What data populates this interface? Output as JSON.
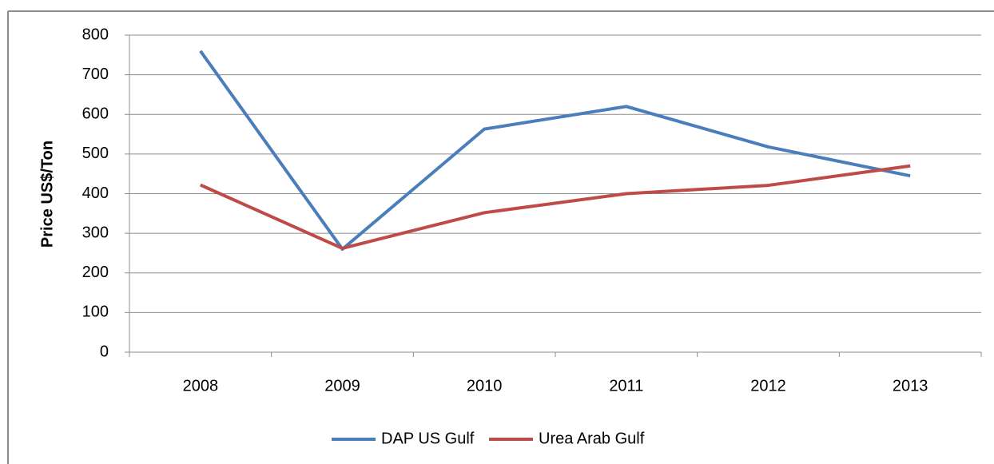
{
  "chart_data": {
    "type": "line",
    "categories": [
      "2008",
      "2009",
      "2010",
      "2011",
      "2012",
      "2013"
    ],
    "y_label": "Price  US$/Ton",
    "series": [
      {
        "name": "DAP US Gulf",
        "color": "#4a7ebb",
        "values": [
          760,
          260,
          563,
          620,
          518,
          445
        ]
      },
      {
        "name": "Urea Arab Gulf",
        "color": "#be4b48",
        "values": [
          422,
          262,
          352,
          400,
          421,
          470
        ]
      }
    ],
    "ylim": [
      0,
      800
    ],
    "yticks": [
      0,
      100,
      200,
      300,
      400,
      500,
      600,
      700,
      800
    ],
    "grid": true,
    "legend": "bottom"
  }
}
